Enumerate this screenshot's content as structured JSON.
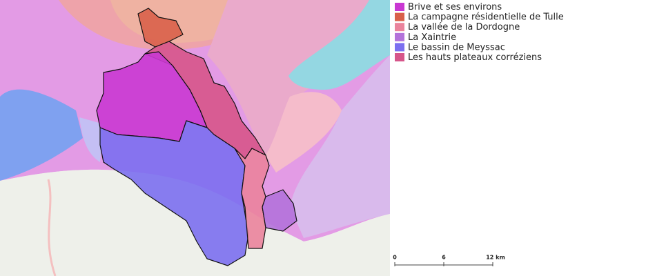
{
  "legend": [
    {
      "label": "Brive et ses environs",
      "color": "#c938d2"
    },
    {
      "label": "La campagne résidentielle de Tulle",
      "color": "#d9604a"
    },
    {
      "label": "La vallée de la Dordogne",
      "color": "#ea839c"
    },
    {
      "label": "La Xaintrie",
      "color": "#b372da"
    },
    {
      "label": "Le bassin de Meyssac",
      "color": "#7b6ff0"
    },
    {
      "label": "Les hauts plateaux corréziens",
      "color": "#d6558a"
    }
  ],
  "scale": {
    "labels": [
      "0",
      "6",
      "12 km"
    ]
  }
}
